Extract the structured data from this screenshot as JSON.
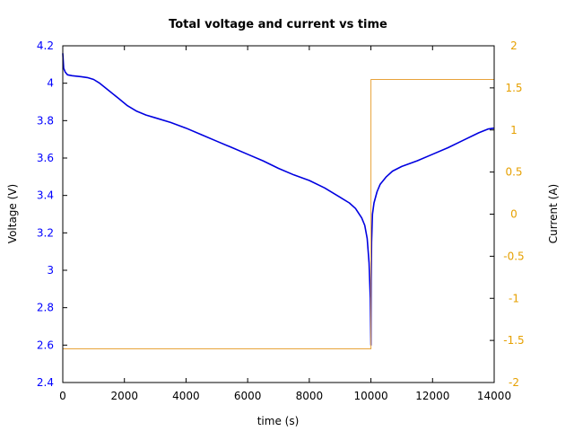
{
  "chart_data": {
    "type": "line",
    "title": "Total voltage and current vs time",
    "xlabel": "time (s)",
    "ylabel_left": "Voltage (V)",
    "ylabel_right": "Current (A)",
    "xlim": [
      0,
      14000
    ],
    "ylim_left": [
      2.4,
      4.2
    ],
    "ylim_right": [
      -2,
      2
    ],
    "x_ticks": [
      0,
      2000,
      4000,
      6000,
      8000,
      10000,
      12000,
      14000
    ],
    "y_left_ticks": [
      "2.4",
      "2.6",
      "2.8",
      "3",
      "3.2",
      "3.4",
      "3.6",
      "3.8",
      "4",
      "4.2"
    ],
    "y_right_ticks": [
      "-2",
      "-1.5",
      "-1",
      "-0.5",
      "0",
      "0.5",
      "1",
      "1.5",
      "2"
    ],
    "grid": false,
    "colors": {
      "voltage": "#0000e0",
      "current": "#e8a33a",
      "left_axis": "#0000ff",
      "right_axis": "#e6a000"
    },
    "series": [
      {
        "axis": "left",
        "x": [
          0,
          30,
          80,
          150,
          300,
          600,
          800,
          1000,
          1200,
          1500,
          1800,
          2100,
          2400,
          2700,
          3000,
          3500,
          4000,
          4500,
          5000,
          5500,
          6000,
          6500,
          7000,
          7500,
          8000,
          8500,
          9000,
          9300,
          9500,
          9700,
          9800,
          9880,
          9940,
          9980,
          10000,
          10010,
          10020,
          10050,
          10100,
          10200,
          10300,
          10500,
          10700,
          11000,
          11500,
          12000,
          12500,
          13000,
          13500,
          13800,
          14000
        ],
        "y": [
          4.16,
          4.08,
          4.06,
          4.045,
          4.04,
          4.035,
          4.03,
          4.02,
          4.0,
          3.96,
          3.92,
          3.88,
          3.85,
          3.83,
          3.815,
          3.79,
          3.76,
          3.725,
          3.69,
          3.655,
          3.62,
          3.585,
          3.545,
          3.51,
          3.48,
          3.44,
          3.39,
          3.36,
          3.33,
          3.28,
          3.24,
          3.17,
          3.04,
          2.85,
          2.6,
          2.95,
          3.15,
          3.3,
          3.36,
          3.42,
          3.46,
          3.5,
          3.53,
          3.555,
          3.585,
          3.62,
          3.655,
          3.695,
          3.735,
          3.755,
          3.76
        ]
      },
      {
        "axis": "right",
        "x": [
          0,
          10000,
          10000,
          14000
        ],
        "y": [
          -1.6,
          -1.6,
          1.6,
          1.6
        ]
      }
    ]
  }
}
